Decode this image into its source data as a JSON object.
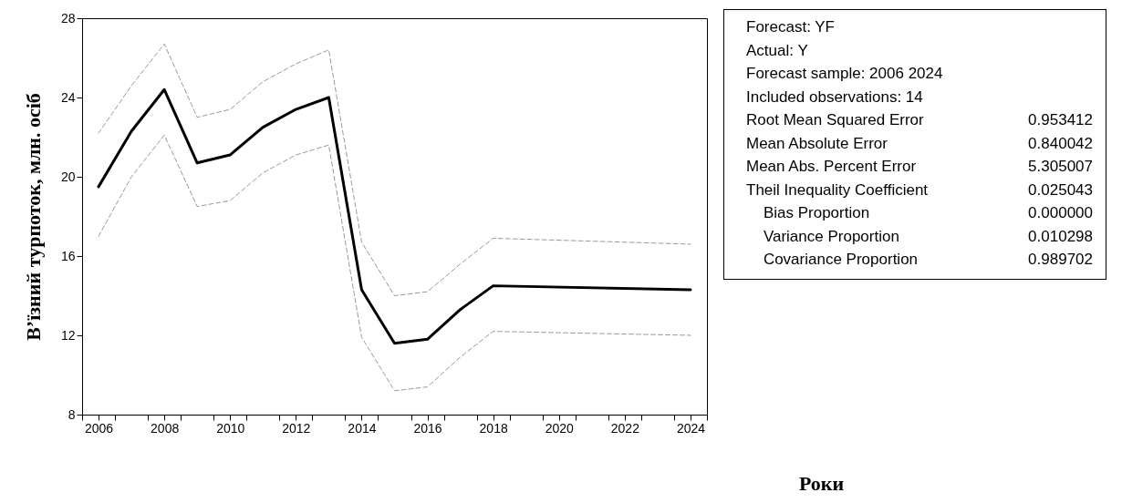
{
  "chart_data": {
    "type": "line",
    "x": [
      2006,
      2007,
      2008,
      2009,
      2010,
      2011,
      2012,
      2013,
      2014,
      2015,
      2016,
      2017,
      2018,
      2024
    ],
    "series": [
      {
        "color": "#000000",
        "line_style": "solid",
        "values": [
          19.5,
          22.3,
          24.4,
          20.7,
          21.1,
          22.5,
          23.4,
          24.0,
          14.3,
          11.6,
          11.8,
          13.3,
          14.5,
          14.3
        ]
      },
      {
        "color": "#999999",
        "line_style": "dashed",
        "values": [
          22.2,
          24.6,
          26.7,
          23.0,
          23.4,
          24.8,
          25.7,
          26.4,
          16.7,
          14.0,
          14.2,
          15.6,
          16.9,
          16.6
        ]
      },
      {
        "color": "#999999",
        "line_style": "dashed",
        "values": [
          17.0,
          20.0,
          22.1,
          18.5,
          18.8,
          20.2,
          21.1,
          21.6,
          11.9,
          9.2,
          9.4,
          10.9,
          12.2,
          12.0
        ]
      }
    ],
    "xlabel": "Роки",
    "ylabel": "В’їзний турпоток, млн. осіб",
    "xlim": [
      2005.5,
      2024.5
    ],
    "xticks": [
      {
        "value": 2005.5,
        "label": null
      },
      2006,
      {
        "value": 2006.5,
        "label": null
      },
      {
        "value": 2007.5,
        "label": null
      },
      2008,
      {
        "value": 2008.5,
        "label": null
      },
      {
        "value": 2009.5,
        "label": null
      },
      2010,
      {
        "value": 2010.5,
        "label": null
      },
      {
        "value": 2011.5,
        "label": null
      },
      2012,
      {
        "value": 2012.5,
        "label": null
      },
      {
        "value": 2013.5,
        "label": null
      },
      2014,
      {
        "value": 2014.5,
        "label": null
      },
      {
        "value": 2015.5,
        "label": null
      },
      2016,
      {
        "value": 2016.5,
        "label": null
      },
      {
        "value": 2017.5,
        "label": null
      },
      2018,
      {
        "value": 2018.5,
        "label": null
      },
      {
        "value": 2019.5,
        "label": null
      },
      2020,
      {
        "value": 2020.5,
        "label": null
      },
      {
        "value": 2021.5,
        "label": null
      },
      2022,
      {
        "value": 2022.5,
        "label": null
      },
      {
        "value": 2023.5,
        "label": null
      },
      2024,
      {
        "value": 2024.5,
        "label": null
      }
    ],
    "ylim": [
      8,
      28
    ],
    "yticks": [
      8,
      12,
      16,
      20,
      24,
      28
    ],
    "grid": false,
    "marker": "none",
    "annotations": [
      "Forecast: YF",
      "Actual: Y",
      "Forecast sample: 2006 2024",
      "Included observations: 14",
      "Root Mean Squared Error\t0.953412",
      "Mean Absolute Error\t0.840042",
      "Mean Abs. Percent Error\t5.305007",
      "Theil Inequality Coefficient\t0.025043",
      "    Bias Proportion\t0.000000",
      "    Variance Proportion\t0.010298",
      "    Covariance Proportion\t0.989702"
    ]
  }
}
